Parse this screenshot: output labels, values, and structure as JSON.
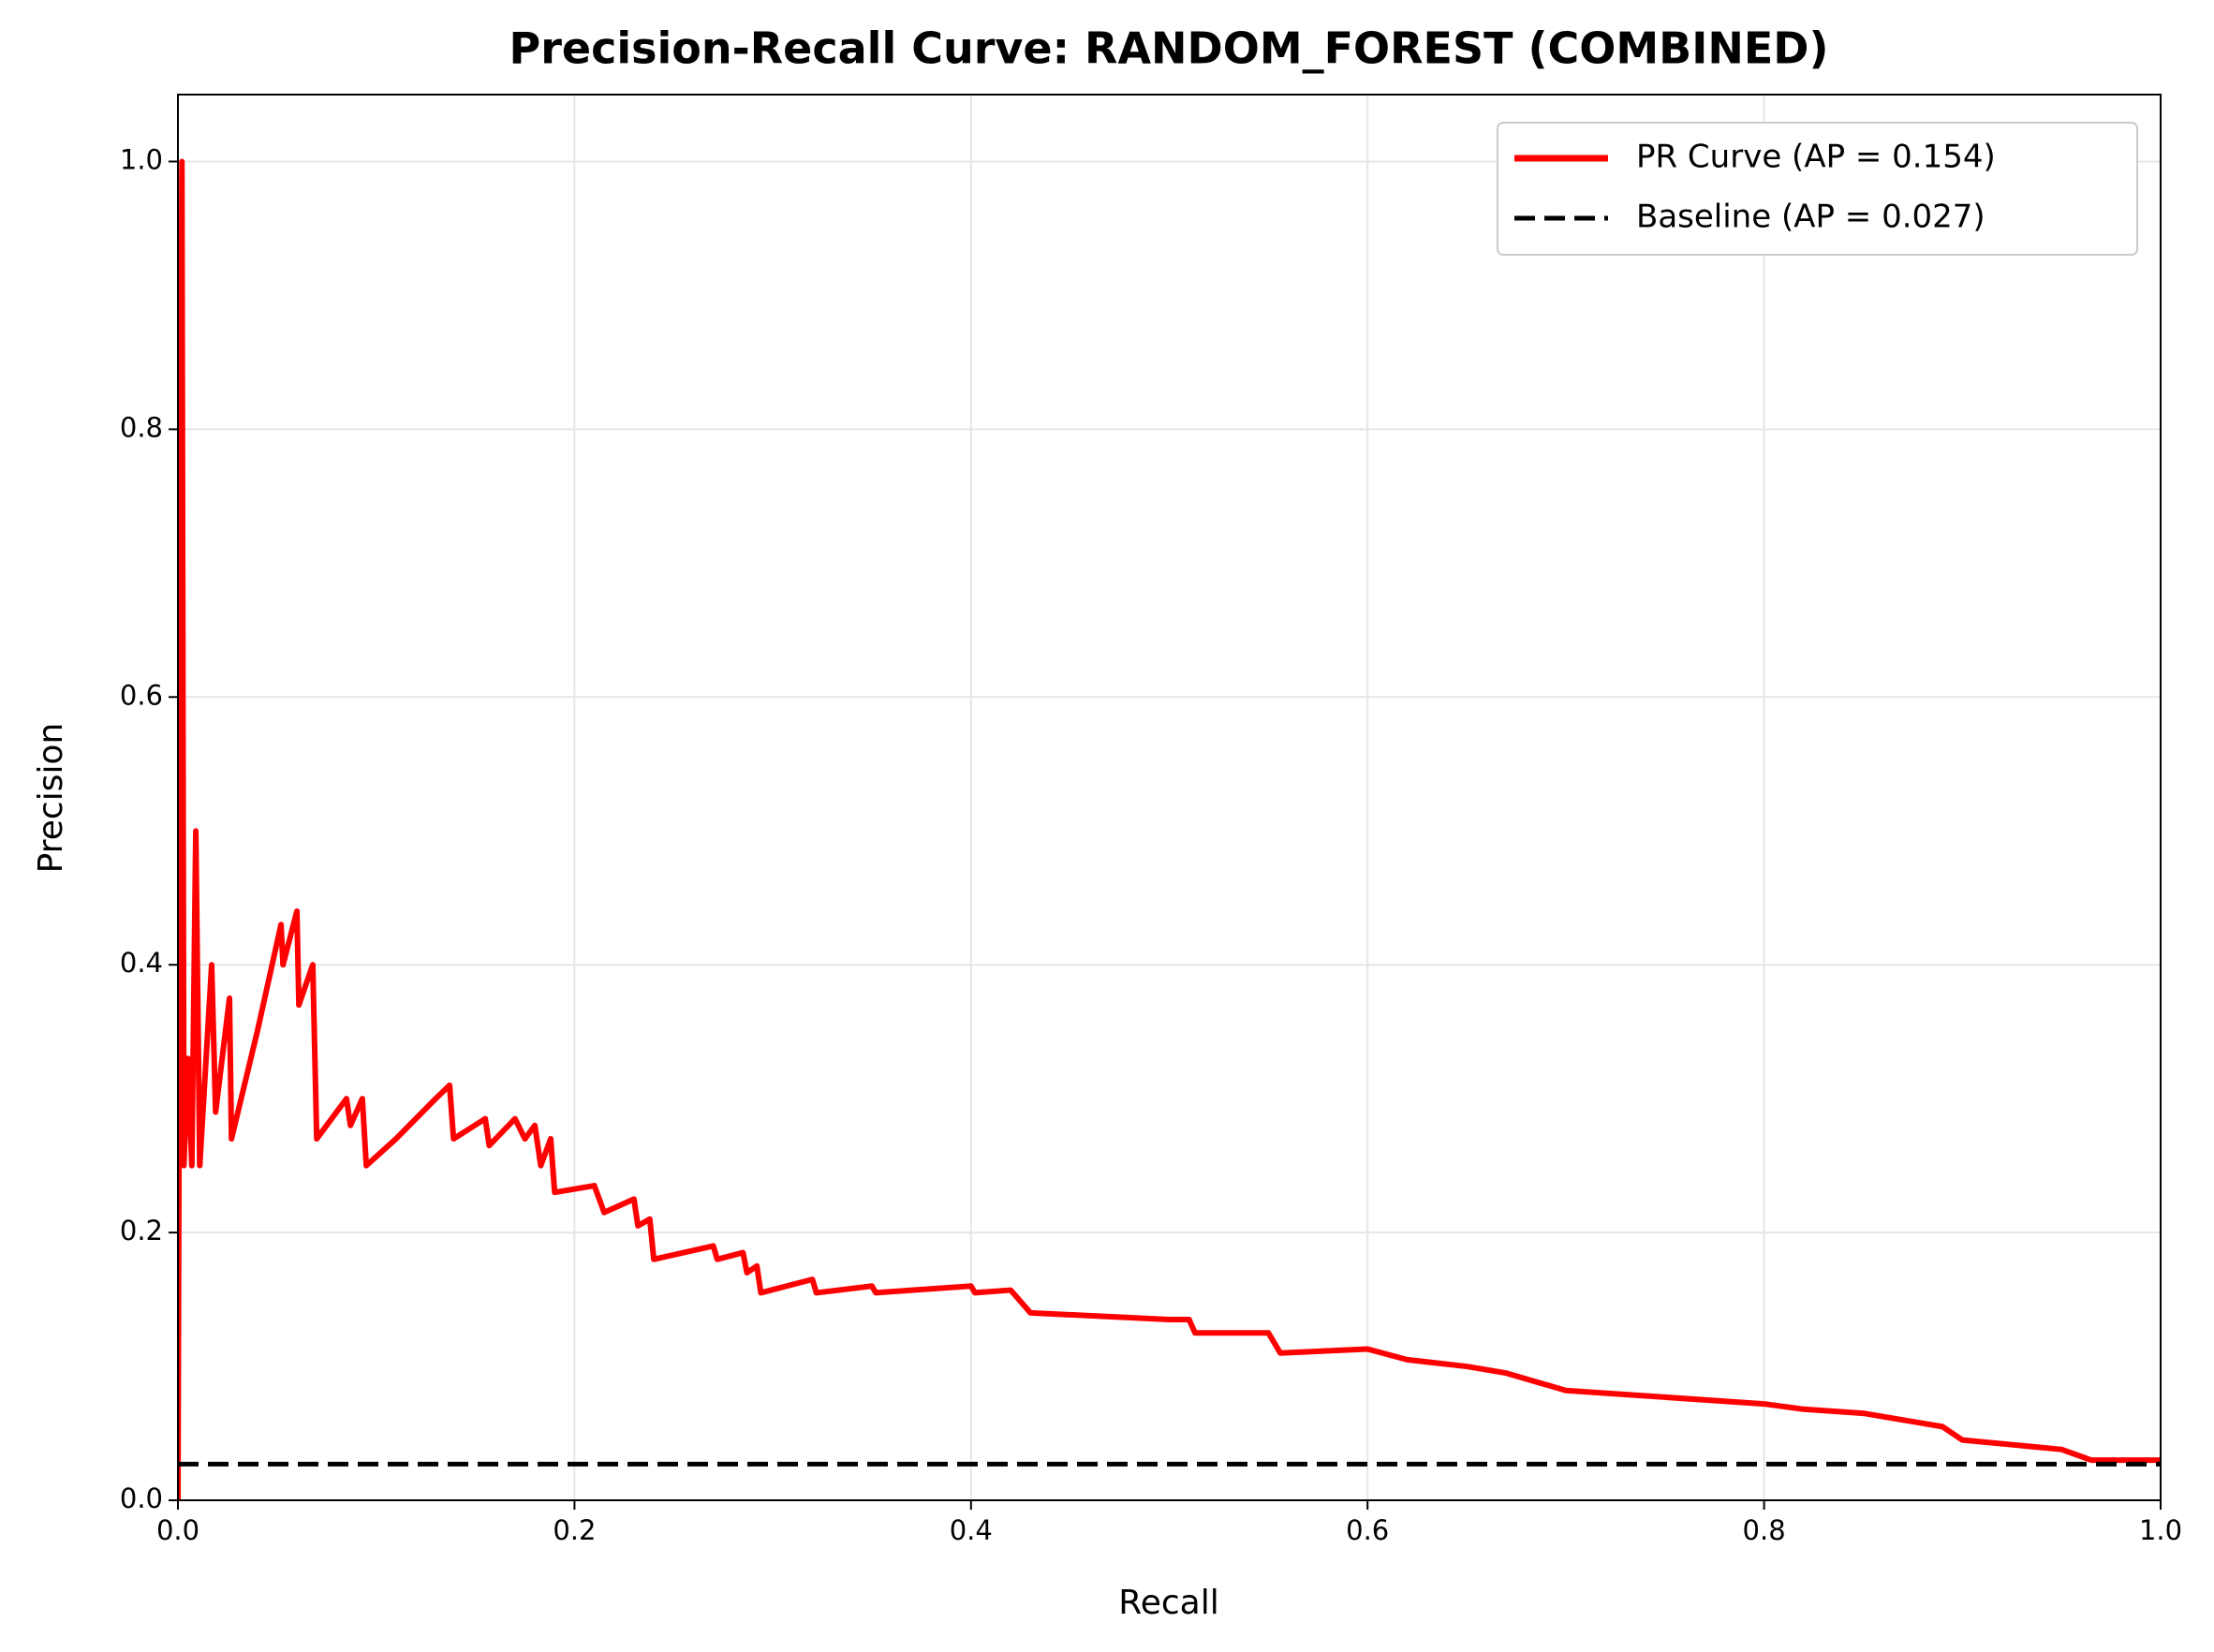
{
  "chart_data": {
    "type": "line",
    "title": "Precision-Recall Curve: RANDOM_FOREST (COMBINED)",
    "xlabel": "Recall",
    "ylabel": "Precision",
    "xlim": [
      0,
      1
    ],
    "ylim": [
      0,
      1.05
    ],
    "xticks": [
      {
        "value": 0,
        "label": "0.0"
      },
      0.2,
      0.4,
      0.6,
      0.8,
      {
        "value": 1,
        "label": "1.0"
      }
    ],
    "yticks": [
      {
        "value": 0,
        "label": "0.0"
      },
      0.2,
      0.4,
      0.6,
      0.8,
      {
        "value": 1,
        "label": "1.0"
      }
    ],
    "grid": true,
    "legend": "upper right",
    "series": [
      {
        "name": "PR Curve (AP = 0.154)",
        "color": "#ff0000",
        "style": "solid",
        "x": [
          0,
          0.002,
          0.003,
          0.005,
          0.007,
          0.009,
          0.011,
          0.017,
          0.019,
          0.026,
          0.027,
          0.04,
          0.052,
          0.053,
          0.06,
          0.061,
          0.068,
          0.07,
          0.08,
          0.085,
          0.087,
          0.093,
          0.095,
          0.11,
          0.13,
          0.137,
          0.139,
          0.155,
          0.157,
          0.17,
          0.175,
          0.18,
          0.183,
          0.188,
          0.19,
          0.21,
          0.215,
          0.23,
          0.232,
          0.238,
          0.24,
          0.27,
          0.272,
          0.285,
          0.287,
          0.292,
          0.294,
          0.32,
          0.322,
          0.35,
          0.352,
          0.4,
          0.402,
          0.42,
          0.43,
          0.5,
          0.51,
          0.513,
          0.55,
          0.556,
          0.6,
          0.62,
          0.65,
          0.67,
          0.7,
          0.72,
          0.75,
          0.8,
          0.82,
          0.85,
          0.89,
          0.9,
          0.95,
          0.965,
          1.0
        ],
        "values": [
          0,
          1.0,
          0.25,
          0.33,
          0.25,
          0.5,
          0.25,
          0.4,
          0.29,
          0.375,
          0.27,
          0.35,
          0.43,
          0.4,
          0.44,
          0.37,
          0.4,
          0.27,
          0.29,
          0.3,
          0.28,
          0.3,
          0.25,
          0.27,
          0.3,
          0.31,
          0.27,
          0.285,
          0.265,
          0.285,
          0.27,
          0.28,
          0.25,
          0.27,
          0.23,
          0.235,
          0.215,
          0.225,
          0.205,
          0.21,
          0.18,
          0.19,
          0.18,
          0.185,
          0.17,
          0.175,
          0.155,
          0.165,
          0.155,
          0.16,
          0.155,
          0.16,
          0.155,
          0.157,
          0.14,
          0.135,
          0.135,
          0.125,
          0.125,
          0.11,
          0.113,
          0.105,
          0.1,
          0.095,
          0.082,
          0.08,
          0.077,
          0.072,
          0.068,
          0.065,
          0.055,
          0.045,
          0.038,
          0.03,
          0.03
        ]
      },
      {
        "name": "Baseline (AP = 0.027)",
        "color": "#000000",
        "style": "dashed",
        "x": [
          0,
          1
        ],
        "values": [
          0.027,
          0.027
        ]
      }
    ]
  }
}
